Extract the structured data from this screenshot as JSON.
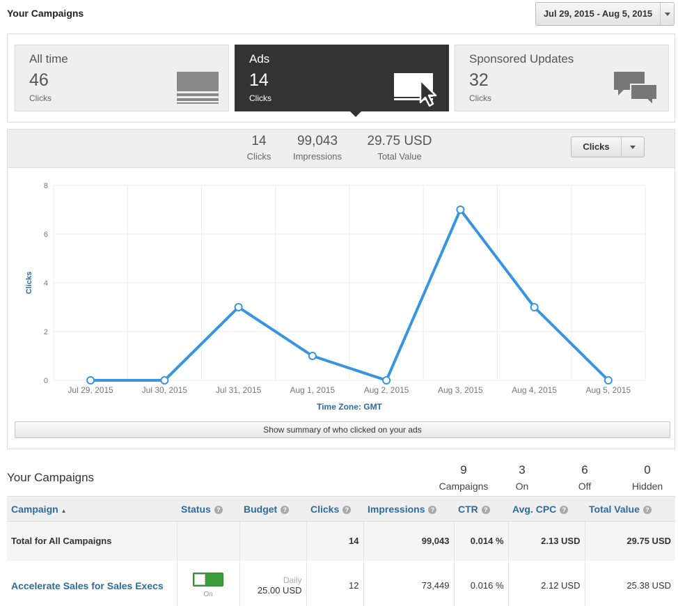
{
  "header": {
    "title": "Your Campaigns",
    "date_range": "Jul 29, 2015 - Aug 5, 2015"
  },
  "cards": [
    {
      "title": "All time",
      "value": "46",
      "unit": "Clicks",
      "icon": "stacked-lines-icon"
    },
    {
      "title": "Ads",
      "value": "14",
      "unit": "Clicks",
      "icon": "ad-cursor-icon"
    },
    {
      "title": "Sponsored Updates",
      "value": "32",
      "unit": "Clicks",
      "icon": "chat-bubbles-icon"
    }
  ],
  "stats": [
    {
      "value": "14",
      "label": "Clicks"
    },
    {
      "value": "99,043",
      "label": "Impressions"
    },
    {
      "value": "29.75 USD",
      "label": "Total Value"
    }
  ],
  "metric_select": "Clicks",
  "chart_data": {
    "type": "line",
    "x": [
      "Jul 29, 2015",
      "Jul 30, 2015",
      "Jul 31, 2015",
      "Aug 1, 2015",
      "Aug 2, 2015",
      "Aug 3, 2015",
      "Aug 4, 2015",
      "Aug 5, 2015"
    ],
    "series": [
      {
        "values": [
          0,
          0,
          3,
          1,
          0,
          7,
          3,
          0
        ]
      }
    ],
    "ylabel": "Clicks",
    "xlabel": "Time Zone: GMT",
    "yticks": [
      0,
      2,
      4,
      6,
      8
    ],
    "ylim": [
      0,
      8
    ],
    "grid": true,
    "color": "#3794e1"
  },
  "summary_button": "Show summary of who clicked on your ads",
  "campaigns_section": {
    "title": "Your Campaigns",
    "counts": [
      {
        "value": "9",
        "label": "Campaigns"
      },
      {
        "value": "3",
        "label": "On"
      },
      {
        "value": "6",
        "label": "Off"
      },
      {
        "value": "0",
        "label": "Hidden"
      }
    ]
  },
  "table": {
    "columns": [
      "Campaign",
      "Status",
      "Budget",
      "Clicks",
      "Impressions",
      "CTR",
      "Avg. CPC",
      "Total Value"
    ],
    "total": {
      "name": "Total for All Campaigns",
      "clicks": "14",
      "impressions": "99,043",
      "ctr": "0.014 %",
      "cpc": "2.13 USD",
      "value": "29.75 USD"
    },
    "rows": [
      {
        "name": "Accelerate Sales for Sales Execs",
        "status": "On",
        "budget_type": "Daily",
        "budget": "25.00 USD",
        "clicks": "12",
        "impressions": "73,449",
        "ctr": "0.016 %",
        "cpc": "2.12 USD",
        "value": "25.38 USD"
      }
    ]
  }
}
